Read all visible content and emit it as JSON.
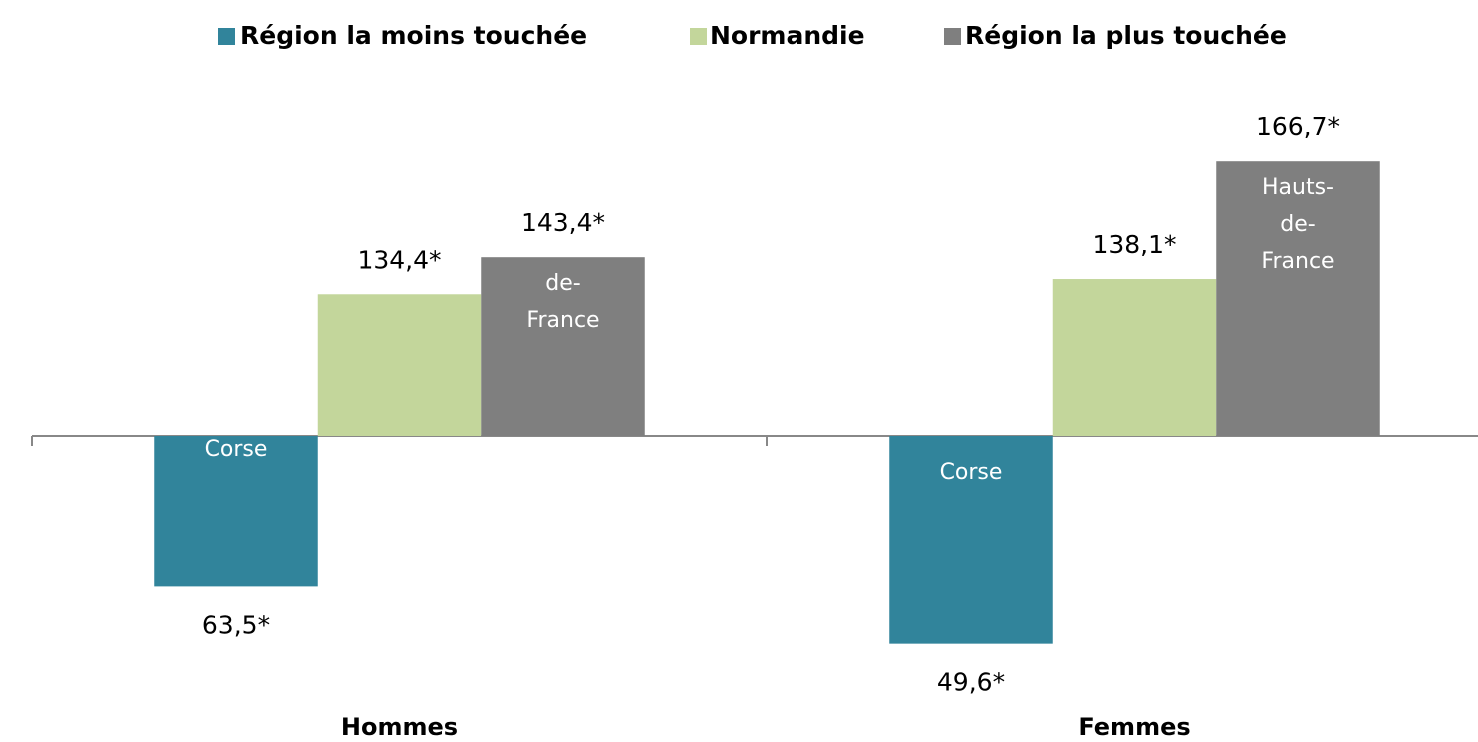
{
  "chart_data": {
    "type": "bar",
    "categories": [
      "Hommes",
      "Femmes"
    ],
    "baseline": 100,
    "ylim": [
      40,
      180
    ],
    "series": [
      {
        "name": "Région la moins touchée",
        "color": "#31849b",
        "values": [
          63.5,
          49.6
        ],
        "value_labels": [
          "63,5*",
          "49,6*"
        ],
        "bar_labels": [
          [
            "Corse"
          ],
          [
            "Corse"
          ]
        ]
      },
      {
        "name": "Normandie",
        "color": "#c3d69b",
        "values": [
          134.4,
          138.1
        ],
        "value_labels": [
          "134,4*",
          "138,1*"
        ]
      },
      {
        "name": "Région la plus touchée",
        "color": "#7f7f7f",
        "values": [
          143.4,
          166.7
        ],
        "value_labels": [
          "143,4*",
          "166,7*"
        ],
        "bar_labels": [
          [
            "de-",
            "France"
          ],
          [
            "Hauts-",
            "de-",
            "France"
          ]
        ]
      }
    ]
  }
}
